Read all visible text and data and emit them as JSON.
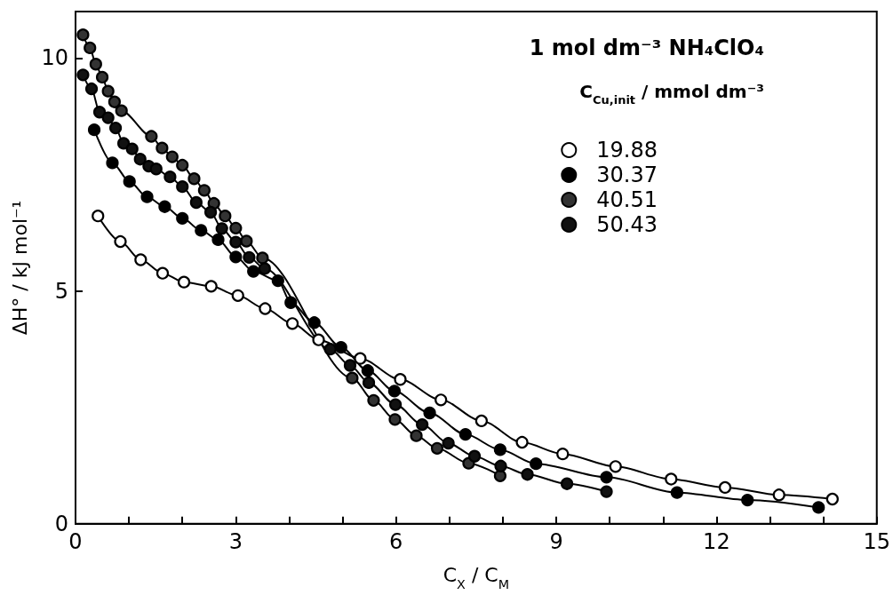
{
  "chart_data": {
    "type": "line",
    "title": "1 mol dm⁻³ NH₄ClO₄",
    "legend_title": "C$_{Cu,init}$ / mmol dm⁻³",
    "xlabel": "C$_{X}$ / C$_{M}$",
    "ylabel": "ΔH° / kJ mol⁻¹",
    "xlim": [
      0,
      15
    ],
    "ylim": [
      0,
      11
    ],
    "xticks": [
      0,
      {
        "value": 1,
        "label": null
      },
      {
        "value": 2,
        "label": null
      },
      3,
      {
        "value": 4,
        "label": null
      },
      {
        "value": 5,
        "label": null
      },
      6,
      {
        "value": 7,
        "label": null
      },
      {
        "value": 8,
        "label": null
      },
      9,
      {
        "value": 10,
        "label": null
      },
      {
        "value": 11,
        "label": null
      },
      12,
      {
        "value": 13,
        "label": null
      },
      {
        "value": 14,
        "label": null
      },
      15
    ],
    "yticks": [
      0,
      5,
      10
    ],
    "grid": false,
    "legend": "top right",
    "marker": "circle",
    "line_style": "solid",
    "series": [
      {
        "name": "19.88",
        "color": "#ffffff",
        "x": [
          0.42,
          0.84,
          1.22,
          1.63,
          2.03,
          2.54,
          3.04,
          3.55,
          4.06,
          4.55,
          5.33,
          6.08,
          6.84,
          7.6,
          8.36,
          9.12,
          10.11,
          11.15,
          12.16,
          13.17,
          14.17
        ],
        "values": [
          6.61,
          6.06,
          5.67,
          5.38,
          5.19,
          5.1,
          4.9,
          4.62,
          4.3,
          3.95,
          3.55,
          3.1,
          2.66,
          2.21,
          1.75,
          1.5,
          1.23,
          0.96,
          0.78,
          0.62,
          0.53
        ]
      },
      {
        "name": "30.37",
        "color": "#000000",
        "x": [
          0.35,
          0.69,
          1.01,
          1.34,
          1.67,
          2.0,
          2.35,
          2.67,
          3.0,
          3.33,
          3.79,
          4.03,
          4.47,
          4.97,
          5.47,
          5.97,
          6.63,
          7.3,
          7.95,
          8.62,
          9.94,
          11.26,
          12.58,
          13.91
        ],
        "values": [
          8.46,
          7.75,
          7.35,
          7.02,
          6.81,
          6.56,
          6.3,
          6.1,
          5.73,
          5.42,
          5.22,
          4.75,
          4.32,
          3.79,
          3.29,
          2.85,
          2.38,
          1.92,
          1.59,
          1.29,
          1.0,
          0.67,
          0.51,
          0.35
        ]
      },
      {
        "name": "40.51",
        "color": "#333333",
        "x": [
          0.14,
          0.27,
          0.38,
          0.5,
          0.61,
          0.73,
          0.86,
          1.42,
          1.62,
          1.81,
          2.0,
          2.22,
          2.41,
          2.59,
          2.8,
          3.0,
          3.2,
          3.5,
          5.18,
          5.58,
          5.98,
          6.38,
          6.77,
          7.36,
          7.95
        ],
        "values": [
          10.5,
          10.22,
          9.87,
          9.59,
          9.29,
          9.06,
          8.87,
          8.32,
          8.07,
          7.88,
          7.7,
          7.41,
          7.16,
          6.88,
          6.61,
          6.35,
          6.07,
          5.71,
          3.13,
          2.65,
          2.24,
          1.89,
          1.62,
          1.3,
          1.03
        ]
      },
      {
        "name": "50.43",
        "color": "#111111",
        "x": [
          0.14,
          0.3,
          0.45,
          0.61,
          0.75,
          0.9,
          1.06,
          1.21,
          1.37,
          1.51,
          1.77,
          2.0,
          2.26,
          2.53,
          2.74,
          3.0,
          3.25,
          3.54,
          4.77,
          5.14,
          5.49,
          5.99,
          6.49,
          6.98,
          7.47,
          7.96,
          8.46,
          9.2,
          9.94
        ],
        "values": [
          9.64,
          9.34,
          8.84,
          8.72,
          8.5,
          8.17,
          8.05,
          7.83,
          7.68,
          7.62,
          7.45,
          7.24,
          6.9,
          6.69,
          6.34,
          6.05,
          5.72,
          5.48,
          3.75,
          3.4,
          3.03,
          2.56,
          2.13,
          1.73,
          1.45,
          1.24,
          1.06,
          0.86,
          0.69
        ]
      }
    ]
  }
}
